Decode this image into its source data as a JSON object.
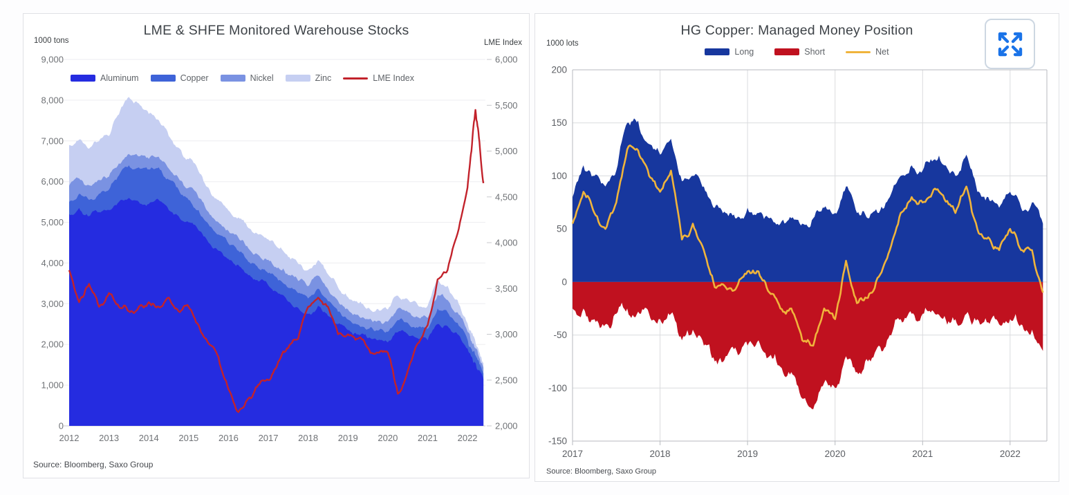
{
  "charts_header": {
    "left_title": "LME & SHFE Monitored Warehouse Stocks",
    "right_title": "HG Copper: Managed Money Position"
  },
  "ui": {
    "expand_button": {
      "icon": "expand-arrows-icon",
      "color": "#1a73e8"
    }
  },
  "chart_data": [
    {
      "type": "area",
      "subtype": "stacked-area-with-line",
      "title": "LME & SHFE Monitored Warehouse Stocks",
      "y_left_unit": "1000 tons",
      "y_right_unit": "LME Index",
      "source": "Source: Bloomberg,  Saxo Group",
      "legend_position": "top-left",
      "grid": "horizontal",
      "y_left": {
        "min": 0,
        "max": 9000,
        "step": 1000
      },
      "y_right": {
        "min": 2000,
        "max": 6000,
        "step": 500
      },
      "x_range": [
        2012,
        2022.45
      ],
      "x_ticks": [
        2012,
        2013,
        2014,
        2015,
        2016,
        2017,
        2018,
        2019,
        2020,
        2021,
        2022
      ],
      "x": [
        2012.0,
        2012.25,
        2012.5,
        2012.75,
        2013.0,
        2013.25,
        2013.5,
        2013.75,
        2014.0,
        2014.25,
        2014.5,
        2014.75,
        2015.0,
        2015.25,
        2015.5,
        2015.75,
        2016.0,
        2016.25,
        2016.5,
        2016.75,
        2017.0,
        2017.25,
        2017.5,
        2017.75,
        2018.0,
        2018.25,
        2018.5,
        2018.75,
        2019.0,
        2019.25,
        2019.5,
        2019.75,
        2020.0,
        2020.25,
        2020.5,
        2020.75,
        2021.0,
        2021.25,
        2021.5,
        2021.75,
        2022.0,
        2022.1,
        2022.2,
        2022.3,
        2022.4
      ],
      "series": [
        {
          "name": "Aluminum",
          "type": "area",
          "axis": "left",
          "color": "#252ce0",
          "values": [
            5200,
            5350,
            5150,
            5250,
            5300,
            5500,
            5600,
            5500,
            5450,
            5550,
            5300,
            5150,
            5000,
            4800,
            4500,
            4300,
            4100,
            3950,
            3700,
            3550,
            3450,
            3250,
            3050,
            2900,
            2750,
            2950,
            2700,
            2500,
            2350,
            2250,
            2150,
            2100,
            2050,
            2300,
            2250,
            2150,
            2100,
            2500,
            2450,
            2250,
            1900,
            1700,
            1550,
            1350,
            1150
          ]
        },
        {
          "name": "Copper",
          "type": "area",
          "axis": "left",
          "color": "#3e63d8",
          "values": [
            300,
            350,
            400,
            450,
            500,
            650,
            800,
            850,
            850,
            800,
            750,
            650,
            550,
            500,
            450,
            400,
            380,
            350,
            330,
            320,
            300,
            320,
            340,
            360,
            380,
            420,
            360,
            300,
            260,
            240,
            230,
            240,
            260,
            300,
            280,
            260,
            280,
            380,
            340,
            280,
            220,
            200,
            180,
            160,
            140
          ]
        },
        {
          "name": "Nickel",
          "type": "area",
          "axis": "left",
          "color": "#7a92e2",
          "values": [
            400,
            380,
            360,
            340,
            320,
            300,
            280,
            270,
            260,
            260,
            270,
            280,
            300,
            300,
            300,
            300,
            310,
            320,
            330,
            330,
            330,
            320,
            310,
            300,
            300,
            320,
            300,
            270,
            250,
            240,
            240,
            245,
            250,
            280,
            270,
            260,
            270,
            330,
            300,
            260,
            200,
            185,
            170,
            155,
            140
          ]
        },
        {
          "name": "Zinc",
          "type": "area",
          "axis": "left",
          "color": "#c6cff2",
          "values": [
            1000,
            950,
            900,
            950,
            1000,
            1200,
            1400,
            1300,
            1100,
            900,
            800,
            750,
            700,
            650,
            600,
            550,
            500,
            500,
            500,
            500,
            500,
            480,
            450,
            420,
            400,
            380,
            360,
            330,
            300,
            290,
            280,
            290,
            300,
            320,
            310,
            300,
            300,
            380,
            350,
            300,
            200,
            180,
            160,
            140,
            120
          ]
        },
        {
          "name": "LME Index",
          "type": "line",
          "axis": "right",
          "color": "#c2222b",
          "values": [
            3700,
            3350,
            3550,
            3300,
            3450,
            3300,
            3250,
            3300,
            3350,
            3300,
            3400,
            3250,
            3300,
            3100,
            2900,
            2750,
            2400,
            2150,
            2300,
            2450,
            2500,
            2700,
            2850,
            2950,
            3300,
            3400,
            3300,
            3000,
            3000,
            2950,
            2850,
            2800,
            2800,
            2350,
            2600,
            2900,
            3100,
            3600,
            3700,
            4100,
            4600,
            5000,
            5450,
            5100,
            4650
          ]
        }
      ]
    },
    {
      "type": "area",
      "subtype": "positive-negative-area-with-line",
      "title": "HG Copper: Managed Money Position",
      "y_left_unit": "1000 lots",
      "source": "Source: Bloomberg, Saxo Group",
      "legend_position": "top-center",
      "grid": "both",
      "y": {
        "min": -150,
        "max": 200,
        "step": 50
      },
      "x_range": [
        2017,
        2022.42
      ],
      "x_ticks": [
        2017,
        2018,
        2019,
        2020,
        2021,
        2022
      ],
      "x": [
        2017.0,
        2017.125,
        2017.25,
        2017.375,
        2017.5,
        2017.625,
        2017.75,
        2017.875,
        2018.0,
        2018.125,
        2018.25,
        2018.375,
        2018.5,
        2018.625,
        2018.75,
        2018.875,
        2019.0,
        2019.125,
        2019.25,
        2019.375,
        2019.5,
        2019.625,
        2019.75,
        2019.875,
        2020.0,
        2020.125,
        2020.25,
        2020.375,
        2020.5,
        2020.625,
        2020.75,
        2020.875,
        2021.0,
        2021.125,
        2021.25,
        2021.375,
        2021.5,
        2021.625,
        2021.75,
        2021.875,
        2022.0,
        2022.125,
        2022.25,
        2022.375
      ],
      "series": [
        {
          "name": "Long",
          "type": "area",
          "color": "#17379e",
          "values": [
            80,
            110,
            100,
            90,
            105,
            150,
            152,
            130,
            120,
            135,
            95,
            100,
            90,
            70,
            65,
            60,
            70,
            65,
            60,
            55,
            60,
            55,
            60,
            70,
            65,
            90,
            65,
            60,
            65,
            80,
            100,
            110,
            105,
            115,
            110,
            100,
            120,
            85,
            80,
            70,
            85,
            70,
            75,
            55
          ]
        },
        {
          "name": "Short",
          "type": "area",
          "color": "#c0111f",
          "values": [
            -25,
            -25,
            -35,
            -40,
            -30,
            -25,
            -28,
            -30,
            -35,
            -30,
            -55,
            -45,
            -60,
            -75,
            -70,
            -65,
            -60,
            -55,
            -70,
            -80,
            -85,
            -110,
            -120,
            -95,
            -100,
            -70,
            -85,
            -75,
            -60,
            -50,
            -35,
            -30,
            -30,
            -28,
            -32,
            -35,
            -30,
            -35,
            -38,
            -40,
            -35,
            -40,
            -45,
            -65
          ]
        },
        {
          "name": "Net",
          "type": "line",
          "color": "#f0b43c",
          "values": [
            55,
            85,
            65,
            50,
            75,
            125,
            124,
            100,
            85,
            105,
            40,
            55,
            30,
            -5,
            -5,
            -5,
            10,
            10,
            -10,
            -25,
            -25,
            -55,
            -60,
            -25,
            -35,
            20,
            -20,
            -15,
            5,
            30,
            65,
            80,
            75,
            87,
            78,
            65,
            90,
            50,
            42,
            30,
            50,
            30,
            30,
            -10
          ]
        }
      ]
    }
  ]
}
